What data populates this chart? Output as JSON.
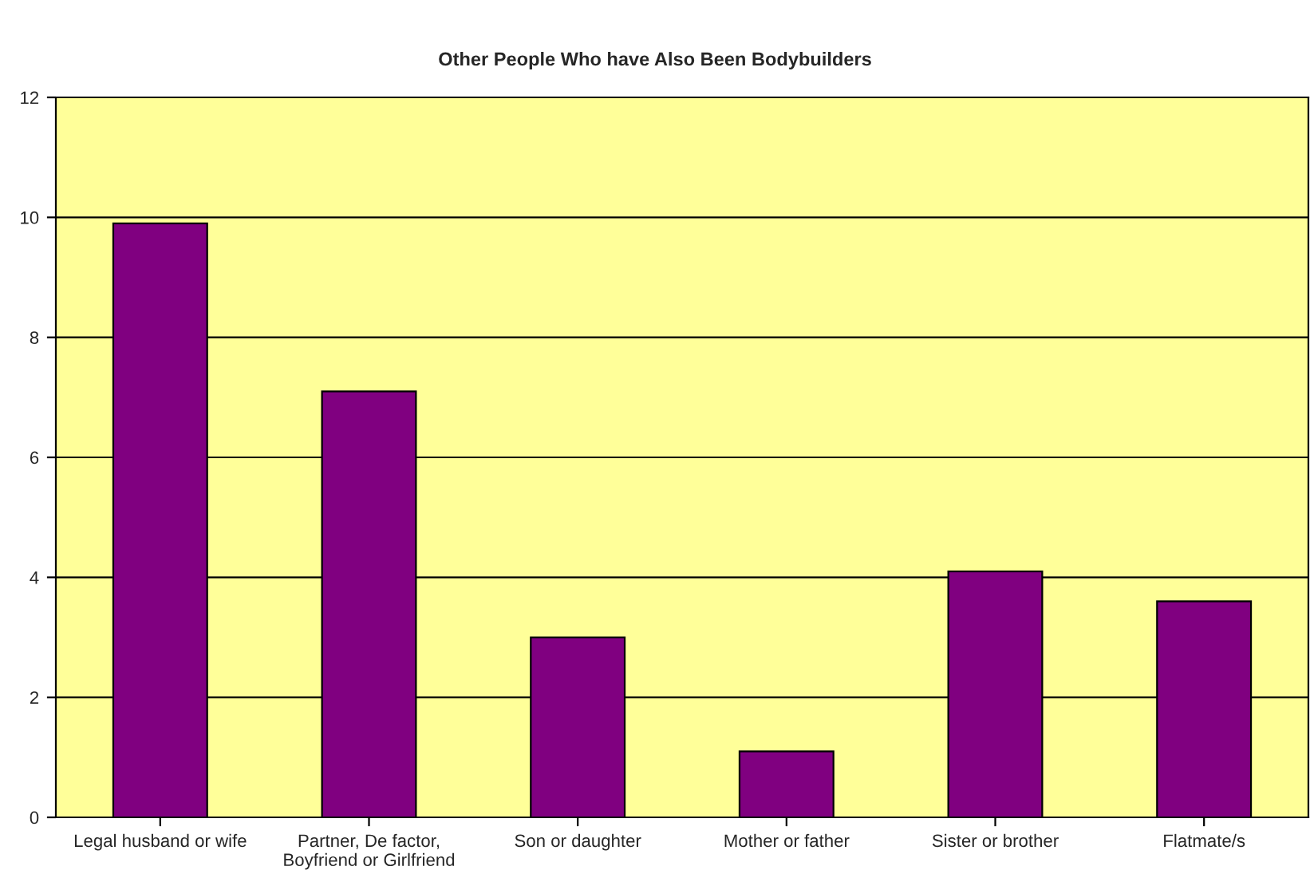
{
  "chart_data": {
    "type": "bar",
    "title": "Other People Who have Also Been Bodybuilders",
    "categories": [
      "Legal husband or wife",
      "Partner, De factor,\nBoyfriend or Girlfriend",
      "Son or daughter",
      "Mother or father",
      "Sister or brother",
      "Flatmate/s"
    ],
    "values": [
      9.9,
      7.1,
      3.0,
      1.1,
      4.1,
      3.6
    ],
    "color": "#800080",
    "ylim": [
      0,
      12
    ],
    "yticks": [
      0,
      2,
      4,
      6,
      8,
      10,
      12
    ],
    "grid": "y"
  }
}
